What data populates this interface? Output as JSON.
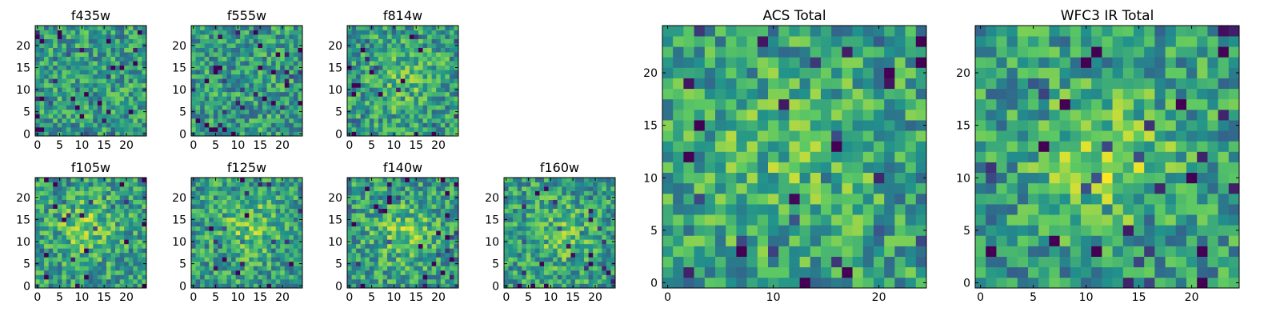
{
  "chart_data": {
    "type": "heatmap",
    "colormap": [
      "#440154",
      "#3b528b",
      "#21918c",
      "#5ec962",
      "#fde725"
    ],
    "panels": [
      {
        "id": "f435w",
        "title": "f435w",
        "grid_size": 25,
        "extent": [
          -0.5,
          24.5
        ],
        "xticks": [
          0,
          5,
          10,
          15,
          20
        ],
        "yticks": [
          0,
          5,
          10,
          15,
          20
        ],
        "xtick_labels": [
          "0",
          "5",
          "10",
          "15",
          "20"
        ],
        "ytick_labels": [
          "0",
          "5",
          "10",
          "15",
          "20"
        ],
        "seed": 11,
        "blob": null
      },
      {
        "id": "f555w",
        "title": "f555w",
        "grid_size": 25,
        "extent": [
          -0.5,
          24.5
        ],
        "xticks": [
          0,
          5,
          10,
          15,
          20
        ],
        "yticks": [
          0,
          5,
          10,
          15,
          20
        ],
        "xtick_labels": [
          "0",
          "5",
          "10",
          "15",
          "20"
        ],
        "ytick_labels": [
          "0",
          "5",
          "10",
          "15",
          "20"
        ],
        "seed": 23,
        "blob": null
      },
      {
        "id": "f814w",
        "title": "f814w",
        "grid_size": 25,
        "extent": [
          -0.5,
          24.5
        ],
        "xticks": [
          0,
          5,
          10,
          15,
          20
        ],
        "yticks": [
          0,
          5,
          10,
          15,
          20
        ],
        "xtick_labels": [
          "0",
          "5",
          "10",
          "15",
          "20"
        ],
        "ytick_labels": [
          "0",
          "5",
          "10",
          "15",
          "20"
        ],
        "seed": 37,
        "blob": [
          12,
          13,
          0.15,
          5
        ]
      },
      {
        "id": "f105w",
        "title": "f105w",
        "grid_size": 25,
        "extent": [
          -0.5,
          24.5
        ],
        "xticks": [
          0,
          5,
          10,
          15,
          20
        ],
        "yticks": [
          0,
          5,
          10,
          15,
          20
        ],
        "xtick_labels": [
          "0",
          "5",
          "10",
          "15",
          "20"
        ],
        "ytick_labels": [
          "0",
          "5",
          "10",
          "15",
          "20"
        ],
        "seed": 41,
        "blob": [
          11,
          13,
          0.2,
          5
        ]
      },
      {
        "id": "f125w",
        "title": "f125w",
        "grid_size": 25,
        "extent": [
          -0.5,
          24.5
        ],
        "xticks": [
          0,
          5,
          10,
          15,
          20
        ],
        "yticks": [
          0,
          5,
          10,
          15,
          20
        ],
        "xtick_labels": [
          "0",
          "5",
          "10",
          "15",
          "20"
        ],
        "ytick_labels": [
          "0",
          "5",
          "10",
          "15",
          "20"
        ],
        "seed": 53,
        "blob": [
          13,
          13,
          0.2,
          5
        ]
      },
      {
        "id": "f140w",
        "title": "f140w",
        "grid_size": 25,
        "extent": [
          -0.5,
          24.5
        ],
        "xticks": [
          0,
          5,
          10,
          15,
          20
        ],
        "yticks": [
          0,
          5,
          10,
          15,
          20
        ],
        "xtick_labels": [
          "0",
          "5",
          "10",
          "15",
          "20"
        ],
        "ytick_labels": [
          "0",
          "5",
          "10",
          "15",
          "20"
        ],
        "seed": 67,
        "blob": [
          12,
          12,
          0.2,
          5
        ]
      },
      {
        "id": "f160w",
        "title": "f160w",
        "grid_size": 25,
        "extent": [
          -0.5,
          24.5
        ],
        "xticks": [
          0,
          5,
          10,
          15,
          20
        ],
        "yticks": [
          0,
          5,
          10,
          15,
          20
        ],
        "xtick_labels": [
          "0",
          "5",
          "10",
          "15",
          "20"
        ],
        "ytick_labels": [
          "0",
          "5",
          "10",
          "15",
          "20"
        ],
        "seed": 79,
        "blob": [
          12,
          12,
          0.15,
          5
        ]
      },
      {
        "id": "acs-total",
        "title": "ACS Total",
        "grid_size": 25,
        "extent": [
          -0.5,
          24.5
        ],
        "xticks": [
          0,
          10,
          20
        ],
        "yticks": [
          0,
          5,
          10,
          15,
          20
        ],
        "xtick_labels": [
          "0",
          "10",
          "20"
        ],
        "ytick_labels": [
          "0",
          "5",
          "10",
          "15",
          "20"
        ],
        "seed": 97,
        "blob": [
          12,
          12,
          0.15,
          6
        ]
      },
      {
        "id": "wfc3-ir-total",
        "title": "WFC3 IR Total",
        "grid_size": 25,
        "extent": [
          -0.5,
          24.5
        ],
        "xticks": [
          0,
          5,
          10,
          15,
          20
        ],
        "yticks": [
          0,
          5,
          10,
          15,
          20
        ],
        "xtick_labels": [
          "0",
          "5",
          "10",
          "15",
          "20"
        ],
        "ytick_labels": [
          "0",
          "5",
          "10",
          "15",
          "20"
        ],
        "seed": 131,
        "blob": [
          12,
          12,
          0.3,
          4
        ]
      }
    ]
  }
}
